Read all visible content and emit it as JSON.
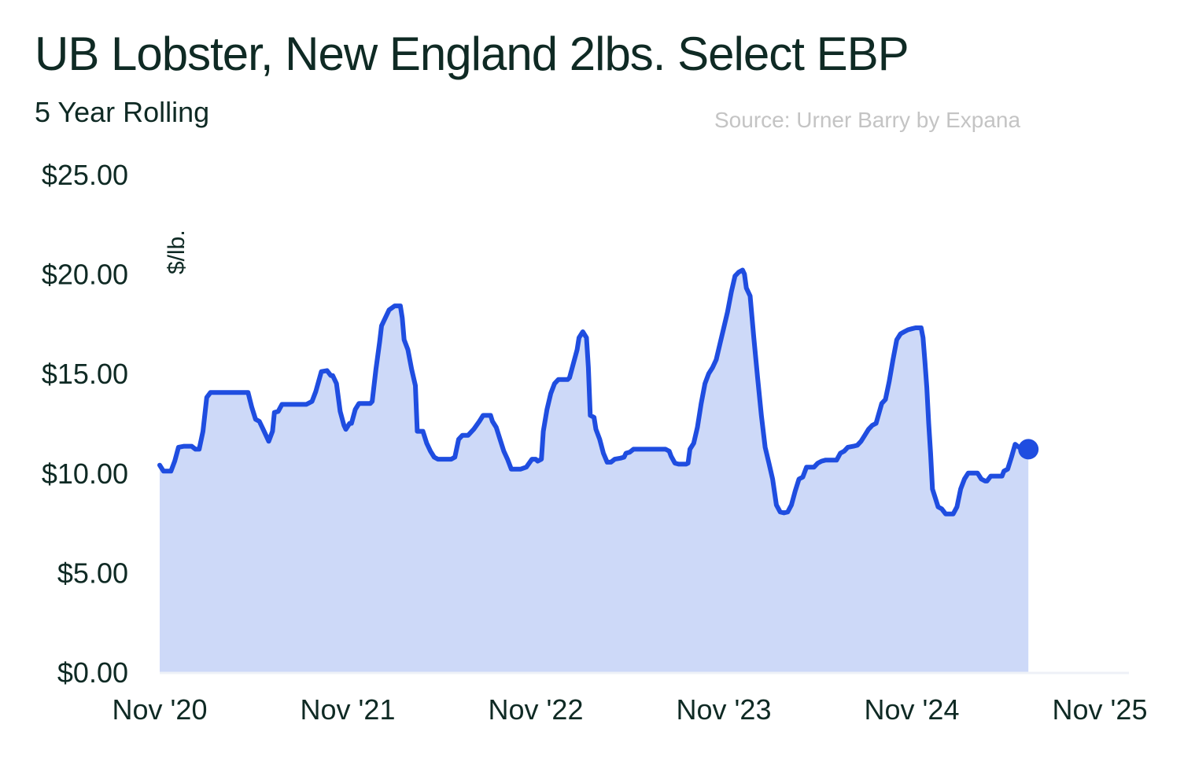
{
  "chart_data": {
    "type": "area",
    "title": "UB Lobster, New England 2lbs. Select EBP",
    "subtitle": "5 Year Rolling",
    "source": "Source: Urner Barry by Expana",
    "ylabel": "$/lb.",
    "ylim": [
      0,
      25
    ],
    "yticks": [
      0,
      5,
      10,
      15,
      20,
      25
    ],
    "ytick_labels": [
      "$0.00",
      "$5.00",
      "$10.00",
      "$15.00",
      "$20.00",
      "$25.00"
    ],
    "xlim": [
      0,
      5
    ],
    "xticks": [
      0,
      1,
      2,
      3,
      4,
      5
    ],
    "xtick_labels": [
      "Nov '20",
      "Nov '21",
      "Nov '22",
      "Nov '23",
      "Nov '24",
      "Nov '25"
    ],
    "x_unit": "years since Nov 2020",
    "grid": false,
    "colors": {
      "line": "#1f4de0",
      "fill": "#cdd9f8",
      "text": "#0f2a24",
      "source": "#c4c4c4"
    },
    "series": [
      {
        "values": [
          [
            0.0,
            10.4
          ],
          [
            0.02,
            10.1
          ],
          [
            0.06,
            10.1
          ],
          [
            0.08,
            10.6
          ],
          [
            0.1,
            11.3
          ],
          [
            0.13,
            11.35
          ],
          [
            0.17,
            11.35
          ],
          [
            0.19,
            11.2
          ],
          [
            0.21,
            11.2
          ],
          [
            0.23,
            12.1
          ],
          [
            0.25,
            13.8
          ],
          [
            0.27,
            14.05
          ],
          [
            0.3,
            14.05
          ],
          [
            0.36,
            14.05
          ],
          [
            0.4,
            14.05
          ],
          [
            0.47,
            14.05
          ],
          [
            0.49,
            13.3
          ],
          [
            0.51,
            12.7
          ],
          [
            0.53,
            12.6
          ],
          [
            0.55,
            12.2
          ],
          [
            0.58,
            11.6
          ],
          [
            0.6,
            12.1
          ],
          [
            0.61,
            13.05
          ],
          [
            0.63,
            13.1
          ],
          [
            0.65,
            13.45
          ],
          [
            0.7,
            13.45
          ],
          [
            0.78,
            13.45
          ],
          [
            0.81,
            13.6
          ],
          [
            0.83,
            14.1
          ],
          [
            0.86,
            15.1
          ],
          [
            0.89,
            15.15
          ],
          [
            0.91,
            14.9
          ],
          [
            0.92,
            14.9
          ],
          [
            0.94,
            14.5
          ],
          [
            0.96,
            13.1
          ],
          [
            0.98,
            12.4
          ],
          [
            0.99,
            12.2
          ],
          [
            1.01,
            12.5
          ],
          [
            1.02,
            12.5
          ],
          [
            1.04,
            13.2
          ],
          [
            1.06,
            13.5
          ],
          [
            1.12,
            13.5
          ],
          [
            1.13,
            13.6
          ],
          [
            1.15,
            15.2
          ],
          [
            1.17,
            16.6
          ],
          [
            1.18,
            17.4
          ],
          [
            1.2,
            17.8
          ],
          [
            1.22,
            18.2
          ],
          [
            1.25,
            18.4
          ],
          [
            1.28,
            18.4
          ],
          [
            1.29,
            17.8
          ],
          [
            1.3,
            16.7
          ],
          [
            1.32,
            16.2
          ],
          [
            1.34,
            15.2
          ],
          [
            1.36,
            14.4
          ],
          [
            1.37,
            12.1
          ],
          [
            1.4,
            12.1
          ],
          [
            1.42,
            11.5
          ],
          [
            1.44,
            11.1
          ],
          [
            1.46,
            10.8
          ],
          [
            1.48,
            10.7
          ],
          [
            1.53,
            10.7
          ],
          [
            1.55,
            10.7
          ],
          [
            1.57,
            10.8
          ],
          [
            1.59,
            11.7
          ],
          [
            1.61,
            11.9
          ],
          [
            1.64,
            11.9
          ],
          [
            1.67,
            12.2
          ],
          [
            1.7,
            12.6
          ],
          [
            1.72,
            12.9
          ],
          [
            1.76,
            12.9
          ],
          [
            1.77,
            12.6
          ],
          [
            1.79,
            12.3
          ],
          [
            1.81,
            11.7
          ],
          [
            1.83,
            11.1
          ],
          [
            1.85,
            10.7
          ],
          [
            1.87,
            10.2
          ],
          [
            1.92,
            10.2
          ],
          [
            1.95,
            10.3
          ],
          [
            1.98,
            10.7
          ],
          [
            2.0,
            10.7
          ],
          [
            2.01,
            10.6
          ],
          [
            2.03,
            10.7
          ],
          [
            2.04,
            12.1
          ],
          [
            2.06,
            13.2
          ],
          [
            2.08,
            14.0
          ],
          [
            2.1,
            14.5
          ],
          [
            2.12,
            14.7
          ],
          [
            2.17,
            14.7
          ],
          [
            2.18,
            14.8
          ],
          [
            2.2,
            15.5
          ],
          [
            2.22,
            16.2
          ],
          [
            2.23,
            16.8
          ],
          [
            2.25,
            17.1
          ],
          [
            2.27,
            16.8
          ],
          [
            2.28,
            15.3
          ],
          [
            2.29,
            12.9
          ],
          [
            2.31,
            12.8
          ],
          [
            2.32,
            12.2
          ],
          [
            2.34,
            11.7
          ],
          [
            2.36,
            11.0
          ],
          [
            2.38,
            10.55
          ],
          [
            2.4,
            10.55
          ],
          [
            2.42,
            10.7
          ],
          [
            2.45,
            10.75
          ],
          [
            2.47,
            10.8
          ],
          [
            2.48,
            11.0
          ],
          [
            2.5,
            11.05
          ],
          [
            2.52,
            11.2
          ],
          [
            2.58,
            11.2
          ],
          [
            2.62,
            11.2
          ],
          [
            2.66,
            11.2
          ],
          [
            2.69,
            11.2
          ],
          [
            2.71,
            11.1
          ],
          [
            2.72,
            10.85
          ],
          [
            2.74,
            10.5
          ],
          [
            2.76,
            10.45
          ],
          [
            2.8,
            10.45
          ],
          [
            2.81,
            10.5
          ],
          [
            2.82,
            11.2
          ],
          [
            2.84,
            11.5
          ],
          [
            2.86,
            12.3
          ],
          [
            2.88,
            13.5
          ],
          [
            2.9,
            14.5
          ],
          [
            2.92,
            15.0
          ],
          [
            2.94,
            15.3
          ],
          [
            2.96,
            15.7
          ],
          [
            2.98,
            16.5
          ],
          [
            3.0,
            17.3
          ],
          [
            3.02,
            18.1
          ],
          [
            3.04,
            19.1
          ],
          [
            3.06,
            19.9
          ],
          [
            3.08,
            20.1
          ],
          [
            3.1,
            20.2
          ],
          [
            3.11,
            20.0
          ],
          [
            3.12,
            19.3
          ],
          [
            3.14,
            18.9
          ],
          [
            3.16,
            16.8
          ],
          [
            3.18,
            14.8
          ],
          [
            3.2,
            12.9
          ],
          [
            3.22,
            11.3
          ],
          [
            3.24,
            10.5
          ],
          [
            3.26,
            9.7
          ],
          [
            3.28,
            8.4
          ],
          [
            3.3,
            8.05
          ],
          [
            3.32,
            8.0
          ],
          [
            3.34,
            8.05
          ],
          [
            3.36,
            8.4
          ],
          [
            3.38,
            9.1
          ],
          [
            3.4,
            9.7
          ],
          [
            3.42,
            9.8
          ],
          [
            3.44,
            10.3
          ],
          [
            3.46,
            10.3
          ],
          [
            3.48,
            10.3
          ],
          [
            3.5,
            10.5
          ],
          [
            3.52,
            10.6
          ],
          [
            3.54,
            10.65
          ],
          [
            3.6,
            10.65
          ],
          [
            3.62,
            11.0
          ],
          [
            3.64,
            11.1
          ],
          [
            3.66,
            11.3
          ],
          [
            3.69,
            11.35
          ],
          [
            3.71,
            11.4
          ],
          [
            3.73,
            11.6
          ],
          [
            3.75,
            11.9
          ],
          [
            3.77,
            12.2
          ],
          [
            3.79,
            12.4
          ],
          [
            3.81,
            12.5
          ],
          [
            3.84,
            13.5
          ],
          [
            3.86,
            13.7
          ],
          [
            3.88,
            14.6
          ],
          [
            3.9,
            15.7
          ],
          [
            3.92,
            16.7
          ],
          [
            3.94,
            17.0
          ],
          [
            3.96,
            17.1
          ],
          [
            3.98,
            17.2
          ],
          [
            4.0,
            17.25
          ],
          [
            4.02,
            17.3
          ],
          [
            4.05,
            17.3
          ],
          [
            4.06,
            16.8
          ],
          [
            4.07,
            15.6
          ],
          [
            4.08,
            14.3
          ],
          [
            4.09,
            12.5
          ],
          [
            4.1,
            11.0
          ],
          [
            4.11,
            9.2
          ],
          [
            4.12,
            8.9
          ],
          [
            4.14,
            8.3
          ],
          [
            4.16,
            8.2
          ],
          [
            4.18,
            7.95
          ],
          [
            4.2,
            7.95
          ],
          [
            4.22,
            7.95
          ],
          [
            4.24,
            8.3
          ],
          [
            4.26,
            9.2
          ],
          [
            4.28,
            9.7
          ],
          [
            4.3,
            10.0
          ],
          [
            4.32,
            10.0
          ],
          [
            4.35,
            10.0
          ],
          [
            4.37,
            9.7
          ],
          [
            4.39,
            9.6
          ],
          [
            4.4,
            9.6
          ],
          [
            4.42,
            9.85
          ],
          [
            4.44,
            9.85
          ],
          [
            4.48,
            9.85
          ],
          [
            4.49,
            10.1
          ],
          [
            4.51,
            10.2
          ],
          [
            4.53,
            10.8
          ],
          [
            4.55,
            11.45
          ],
          [
            4.57,
            11.3
          ],
          [
            4.59,
            11.25
          ],
          [
            4.62,
            11.2
          ]
        ]
      }
    ]
  }
}
